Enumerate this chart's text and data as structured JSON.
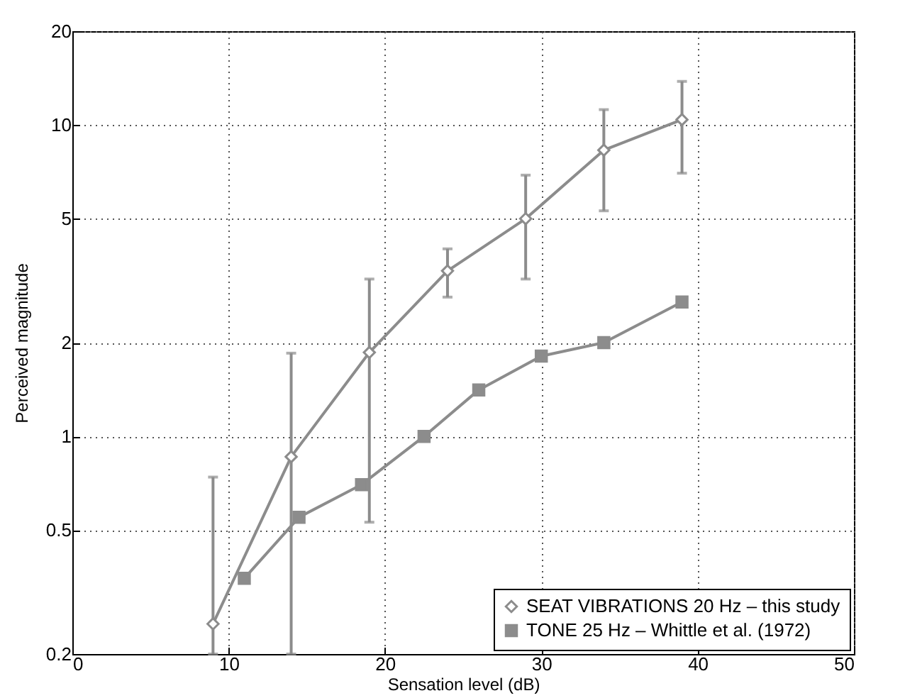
{
  "chart_data": {
    "type": "line",
    "xlabel": "Sensation level (dB)",
    "ylabel": "Perceived magnitude",
    "xlim": [
      0,
      50
    ],
    "xticks": [
      0,
      10,
      20,
      30,
      40,
      50
    ],
    "ylim": [
      0.2,
      20
    ],
    "yticks": [
      0.2,
      0.5,
      1,
      2,
      5,
      10,
      20
    ],
    "log": "y",
    "grid": true,
    "legend": "bottom right",
    "series": [
      {
        "name": "SEAT VIBRATIONS 20 Hz – this study",
        "color": "#8c8c8c",
        "marker": "diamond",
        "x": [
          9,
          14,
          19,
          24,
          29,
          34,
          39
        ],
        "values": [
          0.25,
          0.86,
          1.86,
          3.4,
          5.0,
          8.3,
          10.4
        ],
        "errors": [
          [
            0.2,
            0.74
          ],
          [
            0.2,
            1.85
          ],
          [
            0.53,
            3.2
          ],
          [
            2.8,
            4.0
          ],
          [
            3.2,
            6.9
          ],
          [
            5.3,
            11.2
          ],
          [
            7.0,
            13.8
          ]
        ]
      },
      {
        "name": "TONE 25 Hz – Whittle et al. (1972)",
        "color": "#8c8c8c",
        "marker": "square",
        "x": [
          11,
          14.5,
          18.5,
          22.5,
          26,
          30,
          34,
          39
        ],
        "values": [
          0.35,
          0.55,
          0.7,
          1.0,
          1.41,
          1.81,
          2.0,
          2.7
        ]
      }
    ]
  }
}
